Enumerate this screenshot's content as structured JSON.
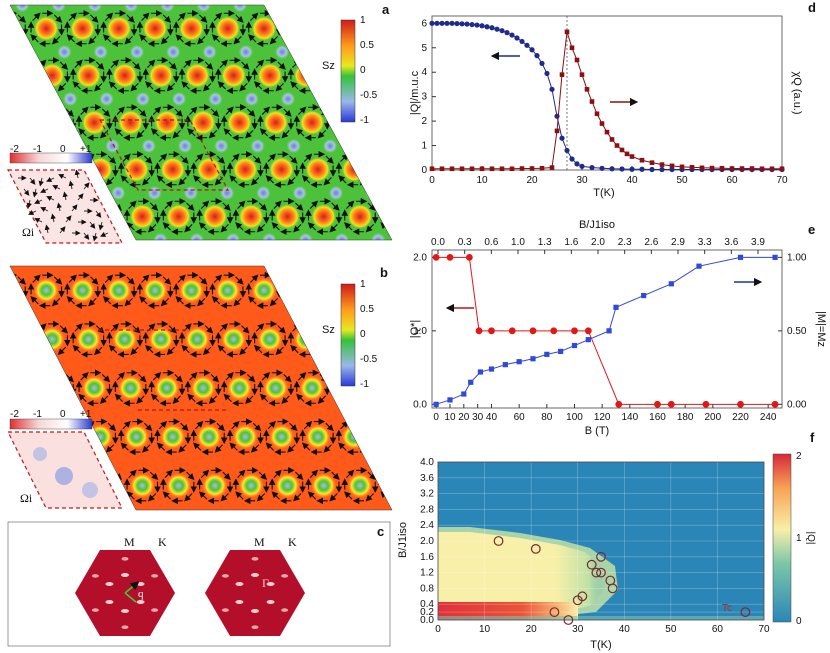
{
  "colors": {
    "skyrmion_red": "#d81e1e",
    "field_green": "#4cc23a",
    "field_blue": "#6a7fd8",
    "orange": "#ff7a1a",
    "dark_blue_series": "#1f2a8c",
    "dark_red_series": "#8b1010",
    "blue_series": "#2f49d8",
    "red_series": "#e01818",
    "bz_red": "#b30f2a",
    "heat_blue": "#2b86b8",
    "heat_yellow": "#f8efa8",
    "heat_red": "#e0303a"
  },
  "panels": {
    "a": {
      "letter": "a",
      "colorbar_title": "Sz",
      "ticks": [
        "1",
        "0.5",
        "0",
        "-0.5",
        "-1"
      ],
      "inset_label": "Ωi",
      "inset_ticks": [
        "-2",
        "-1",
        "0",
        "+1"
      ]
    },
    "b": {
      "letter": "b",
      "colorbar_title": "Sz",
      "ticks": [
        "1",
        "0.5",
        "0",
        "-0.5",
        "-1"
      ],
      "inset_label": "Ωi",
      "inset_ticks": [
        "-2",
        "-1",
        "0",
        "+1"
      ]
    },
    "c": {
      "letter": "c",
      "left_labels": [
        "M",
        "K"
      ],
      "left_vector": "q",
      "right_labels": [
        "M",
        "K"
      ],
      "right_point": "Γ"
    }
  },
  "chart_data": [
    {
      "id": "d",
      "letter": "d",
      "type": "line",
      "xlabel": "T(K)",
      "ylabel_left": "|Q|/m.u.c",
      "ylabel_right": "χQ (a.u.)",
      "xlim": [
        0,
        70
      ],
      "ylim": [
        0,
        6.3
      ],
      "xticks": [
        0,
        10,
        20,
        30,
        40,
        50,
        60,
        70
      ],
      "yticks": [
        0,
        1,
        2,
        3,
        4,
        5,
        6
      ],
      "vline_x": 27,
      "series": [
        {
          "name": "|Q|",
          "color": "#1f2a8c",
          "marker": "circle",
          "x": [
            0,
            1,
            2,
            3,
            4,
            5,
            6,
            7,
            8,
            9,
            10,
            11,
            12,
            13,
            14,
            15,
            16,
            17,
            18,
            19,
            20,
            21,
            22,
            23,
            24,
            25,
            26,
            27,
            28,
            29,
            30,
            32,
            34,
            36,
            38,
            40,
            42,
            44,
            46,
            48,
            50,
            52,
            54,
            56,
            58,
            60,
            62,
            64,
            66,
            68,
            70
          ],
          "y": [
            6.0,
            6.0,
            6.0,
            6.0,
            6.0,
            5.99,
            5.98,
            5.97,
            5.95,
            5.93,
            5.9,
            5.86,
            5.82,
            5.76,
            5.7,
            5.62,
            5.52,
            5.4,
            5.26,
            5.1,
            4.92,
            4.68,
            4.36,
            3.95,
            3.3,
            2.2,
            1.3,
            0.8,
            0.45,
            0.25,
            0.15,
            0.1,
            0.07,
            0.05,
            0.04,
            0.03,
            0.03,
            0.02,
            0.02,
            0.02,
            0.02,
            0.02,
            0.02,
            0.02,
            0.02,
            0.02,
            0.02,
            0.02,
            0.02,
            0.02,
            0.02
          ]
        },
        {
          "name": "χQ",
          "color": "#8b1010",
          "marker": "square",
          "x": [
            0,
            2,
            4,
            6,
            8,
            10,
            12,
            14,
            16,
            18,
            20,
            22,
            24,
            25,
            26,
            27,
            28,
            29,
            30,
            31,
            32,
            33,
            34,
            35,
            36,
            37,
            38,
            39,
            40,
            42,
            44,
            46,
            48,
            50,
            52,
            54,
            56,
            58,
            60,
            62,
            64,
            66,
            68,
            70
          ],
          "y": [
            0.05,
            0.05,
            0.05,
            0.05,
            0.05,
            0.05,
            0.05,
            0.05,
            0.05,
            0.06,
            0.06,
            0.07,
            0.1,
            1.6,
            3.9,
            5.65,
            5.0,
            4.5,
            3.9,
            3.3,
            2.8,
            2.3,
            1.9,
            1.55,
            1.25,
            1.0,
            0.82,
            0.66,
            0.55,
            0.4,
            0.3,
            0.22,
            0.17,
            0.13,
            0.11,
            0.09,
            0.08,
            0.07,
            0.06,
            0.06,
            0.06,
            0.05,
            0.05,
            0.05
          ]
        }
      ]
    },
    {
      "id": "e",
      "letter": "e",
      "type": "line",
      "xlabel": "B (T)",
      "xlabel_top": "B/J1iso",
      "ylabel_left": "|Q*|",
      "ylabel_right": "|M|=Mz",
      "xlim": [
        -3,
        250
      ],
      "ylim": [
        -0.05,
        2.1
      ],
      "xticks": [
        0,
        10,
        20,
        30,
        40,
        60,
        80,
        100,
        120,
        140,
        160,
        180,
        200,
        220,
        240
      ],
      "xticks_top": [
        "0.0",
        "0.3",
        "0.6",
        "1.0",
        "1.3",
        "1.6",
        "2.0",
        "2.3",
        "2.6",
        "2.9",
        "3.3",
        "3.6",
        "3.9"
      ],
      "yticks": [
        "0.0",
        "1.0",
        "2.0"
      ],
      "yticks_right": [
        "0.00",
        "0.50",
        "1.00"
      ],
      "series": [
        {
          "name": "|Q*|",
          "color": "#e01818",
          "marker": "circle",
          "x": [
            0,
            10,
            24,
            31,
            40,
            55,
            70,
            85,
            100,
            110,
            132,
            160,
            170,
            195,
            220,
            245
          ],
          "y": [
            2,
            2,
            2,
            1,
            1,
            1,
            1,
            1,
            1,
            1,
            0,
            0,
            0,
            0,
            0,
            0
          ]
        },
        {
          "name": "|M|",
          "color": "#2f49d8",
          "marker": "square",
          "x": [
            0,
            10,
            20,
            25,
            32,
            40,
            50,
            60,
            70,
            80,
            90,
            100,
            110,
            125,
            130,
            150,
            170,
            190,
            220,
            245
          ],
          "y": [
            0.0,
            0.03,
            0.07,
            0.15,
            0.22,
            0.24,
            0.27,
            0.29,
            0.31,
            0.34,
            0.36,
            0.4,
            0.44,
            0.5,
            0.66,
            0.74,
            0.82,
            0.94,
            1.0,
            1.0
          ]
        }
      ]
    },
    {
      "id": "f",
      "letter": "f",
      "type": "heatmap",
      "xlabel": "T(K)",
      "ylabel": "B/J1iso",
      "colorbar_label": "|Q|",
      "colorbar_ticks": [
        "0",
        "1",
        "2"
      ],
      "xlim": [
        0,
        70
      ],
      "ylim": [
        0,
        4.0
      ],
      "xticks": [
        0,
        10,
        20,
        30,
        40,
        50,
        60,
        70
      ],
      "yticks": [
        "0.0",
        "0.2",
        "0.4",
        "0.8",
        "1.2",
        "1.6",
        "2.0",
        "2.4",
        "2.8",
        "3.2",
        "3.6",
        "4.0"
      ],
      "annotation": "Tc",
      "circles": {
        "x": [
          13,
          21,
          25,
          28,
          30,
          31,
          33,
          34,
          35,
          35,
          37,
          37.5,
          66
        ],
        "y": [
          2.0,
          1.8,
          0.2,
          0.0,
          0.5,
          0.6,
          1.4,
          1.2,
          1.6,
          1.2,
          1.0,
          0.8,
          0.2
        ]
      }
    }
  ]
}
